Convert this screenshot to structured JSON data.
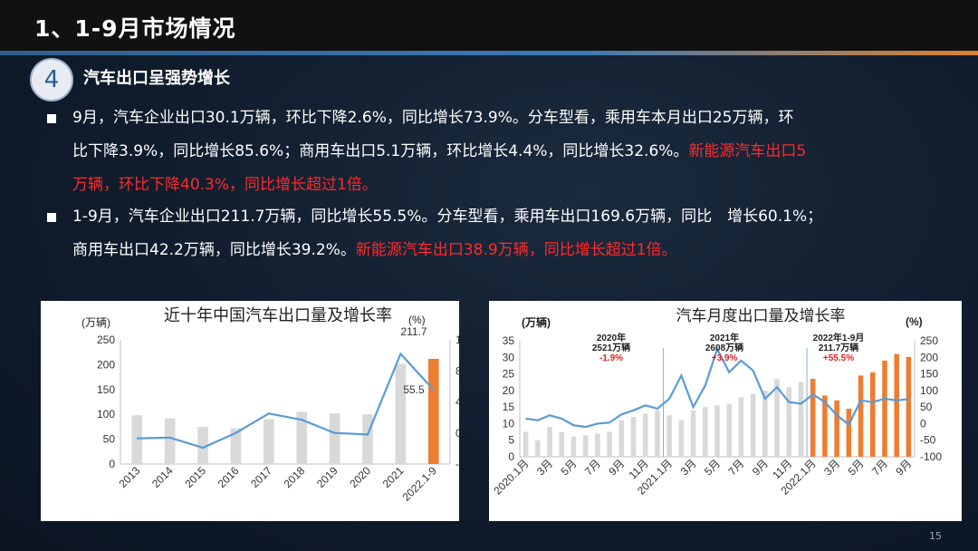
{
  "slide": {
    "title": "1、1-9月市场情况",
    "section_number": "4",
    "subtitle": "汽车出口呈强势增长",
    "page_number": "15"
  },
  "bullets": [
    {
      "line1": "9月，汽车企业出口30.1万辆，环比下降2.6%，同比增长73.9%。分车型看，乘用车本月出口25万辆，环",
      "line2_white": "比下降3.9%，同比增长85.6%；商用车出口5.1万辆，环比增长4.4%，同比增长32.6%。",
      "line2_red": "新能源汽车出口5",
      "line3_red": "万辆，环比下降40.3%，同比增长超过1倍。"
    },
    {
      "line1": "1-9月，汽车企业出口211.7万辆，同比增长55.5%。分车型看，乘用车出口169.6万辆，同比　增长60.1%；",
      "line2_white": "商用车出口42.2万辆，同比增长39.2%。",
      "line2_red": "新能源汽车出口38.9万辆，同比增长超过1倍。"
    }
  ],
  "chart_data": [
    {
      "type": "bar",
      "title": "近十年中国汽车出口量及增长率",
      "ylabel_left": "(万辆)",
      "ylabel_right": "(%)",
      "categories": [
        "2013",
        "2014",
        "2015",
        "2016",
        "2017",
        "2018",
        "2019",
        "2020",
        "2021",
        "2022.1-9"
      ],
      "ylim_left": [
        0,
        250
      ],
      "yticks_left": [
        "0",
        "50",
        "100",
        "150",
        "200",
        "250"
      ],
      "ylim_right": [
        -40,
        120
      ],
      "yticks_right": [
        "-40",
        "0",
        "40",
        "80",
        "120"
      ],
      "series": [
        {
          "values": [
            98,
            92,
            75,
            72,
            90,
            105,
            102,
            100,
            202,
            211.7
          ],
          "color_default": "#d9d9d9",
          "color_highlight": "#ed7d31"
        },
        {
          "kind": "line",
          "values": [
            -7,
            -6,
            -19,
            0,
            25,
            17,
            0,
            -2,
            102,
            55.5
          ],
          "color": "#5b9bd5"
        }
      ],
      "annotations": [
        "211.7",
        "55.5"
      ]
    },
    {
      "type": "bar",
      "title": "汽车月度出口量及增长率",
      "ylabel_left": "(万辆)",
      "ylabel_right": "(%)",
      "categories": [
        "2020.1月",
        "2月",
        "3月",
        "4月",
        "5月",
        "6月",
        "7月",
        "8月",
        "9月",
        "10月",
        "11月",
        "12月",
        "2021.1月",
        "2月",
        "3月",
        "4月",
        "5月",
        "6月",
        "7月",
        "8月",
        "9月",
        "10月",
        "11月",
        "12月",
        "2022.1月",
        "2月",
        "3月",
        "4月",
        "5月",
        "6月",
        "7月",
        "8月",
        "9月"
      ],
      "xtick_labels": [
        "2020.1月",
        "3月",
        "5月",
        "7月",
        "9月",
        "11月",
        "2021.1月",
        "3月",
        "5月",
        "7月",
        "9月",
        "11月",
        "2022.1月",
        "3月",
        "5月",
        "7月",
        "9月"
      ],
      "ylim_left": [
        0,
        35
      ],
      "yticks_left": [
        "0",
        "5",
        "10",
        "15",
        "20",
        "25",
        "30",
        "35"
      ],
      "ylim_right": [
        -100,
        250
      ],
      "yticks_right": [
        "-100",
        "-50",
        "0",
        "50",
        "100",
        "150",
        "200",
        "250"
      ],
      "series": [
        {
          "values": [
            7.5,
            5,
            9,
            7.5,
            6,
            6.5,
            7,
            7.5,
            11,
            12,
            13,
            14,
            12.5,
            11,
            14,
            15,
            15.5,
            16,
            18,
            19,
            20,
            23.5,
            21,
            22.5,
            23.5,
            18.5,
            17,
            14.5,
            24.5,
            25.5,
            29,
            31,
            30.1
          ],
          "color_default": "#d9d9d9",
          "color_highlight": "#ed7d31"
        },
        {
          "kind": "line",
          "values": [
            15,
            10,
            25,
            15,
            -5,
            -10,
            0,
            3,
            28,
            40,
            55,
            45,
            75,
            145,
            50,
            115,
            225,
            155,
            190,
            160,
            75,
            110,
            65,
            60,
            88,
            65,
            25,
            -3,
            70,
            65,
            75,
            70,
            74
          ],
          "color": "#5b9bd5"
        }
      ],
      "annotations": [
        {
          "lines": [
            "2020年",
            "2521万辆"
          ],
          "change": "-1.9%"
        },
        {
          "lines": [
            "2021年",
            "2608万辆"
          ],
          "change": "+3.9%"
        },
        {
          "lines": [
            "2022年1-9月",
            "211.7万辆"
          ],
          "change": "+55.5%"
        }
      ]
    }
  ]
}
